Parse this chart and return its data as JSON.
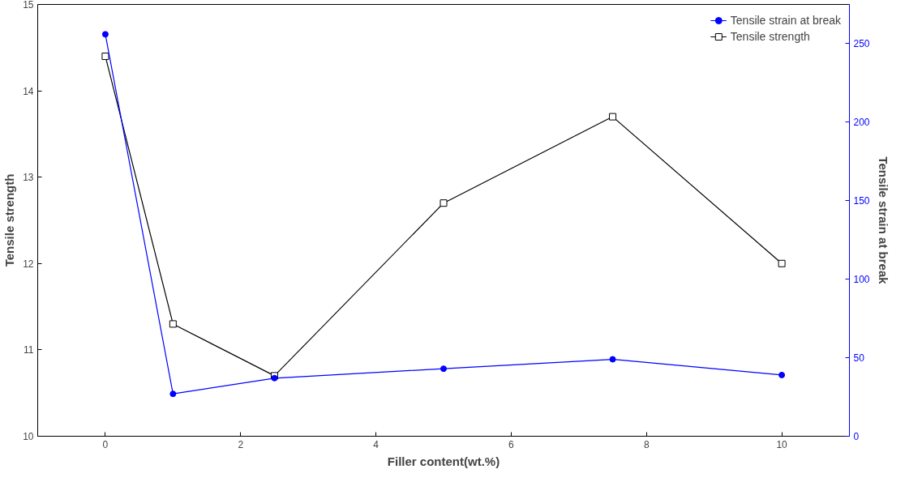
{
  "chart_data": {
    "type": "line",
    "xlabel": "Filler content(wt.%)",
    "ylabel": "Tensile strength",
    "y2label": "Tensile strain at break",
    "x": [
      0,
      1,
      2.5,
      5,
      7.5,
      10
    ],
    "series": [
      {
        "name": "Tensile strain at break",
        "color": "#0000ff",
        "values": [
          256,
          27,
          37,
          43,
          49,
          39
        ],
        "axis": "y2",
        "marker": "circle"
      },
      {
        "name": "Tensile strength",
        "color": "#000000",
        "values": [
          14.4,
          11.3,
          10.7,
          12.7,
          13.7,
          12.0
        ],
        "marker": "square"
      }
    ],
    "xlim": [
      -1,
      11
    ],
    "xticks": [
      0,
      2,
      4,
      6,
      8,
      10
    ],
    "ylim": [
      10,
      15
    ],
    "yticks": [
      10,
      11,
      12,
      13,
      14,
      15
    ],
    "y2lim": [
      0,
      275
    ],
    "y2ticks": [
      0,
      50,
      100,
      150,
      200,
      250
    ],
    "grid": false,
    "legend": "top right",
    "line_style": "solid"
  }
}
